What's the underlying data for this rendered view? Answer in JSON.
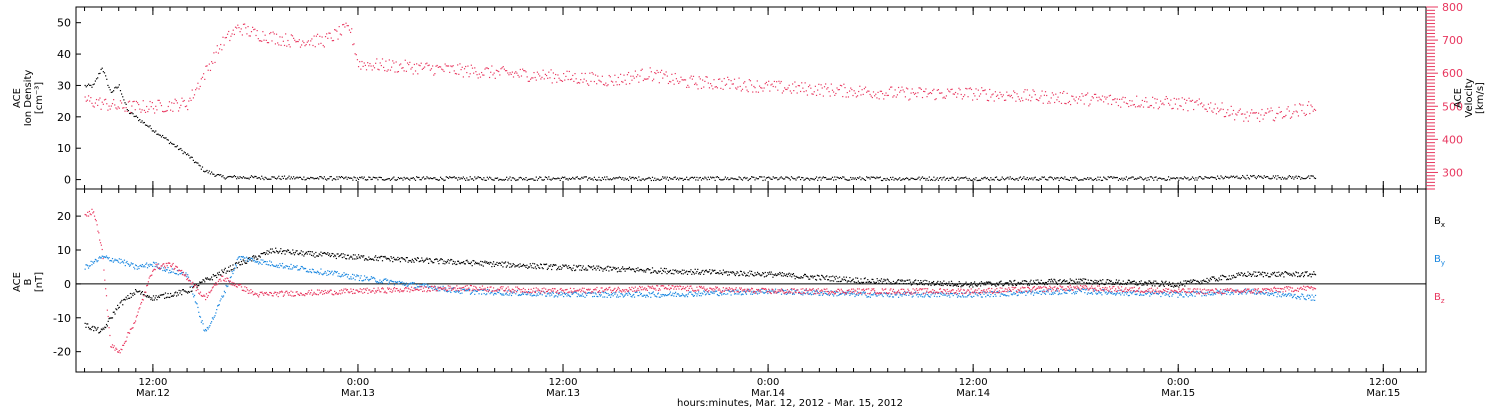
{
  "chart_data": [
    {
      "type": "scatter",
      "panel": "top",
      "ylabel_lines": [
        "ACE",
        "Ion Density",
        "[cm⁻³]"
      ],
      "y2label_lines": [
        "ACE",
        "Velocity",
        "[km/s]"
      ],
      "ylim": [
        -3,
        55
      ],
      "y_ticks": [
        0,
        10,
        20,
        30,
        40,
        50
      ],
      "y2lim": [
        250,
        800
      ],
      "y2_ticks": [
        300,
        400,
        500,
        600,
        700,
        800
      ],
      "series": [
        {
          "color": "#000000",
          "axis": "left",
          "x": [
            "2012-03-12 08:00",
            "2012-03-12 08:30",
            "2012-03-12 09:00",
            "2012-03-12 09:30",
            "2012-03-12 10:00",
            "2012-03-12 10:30",
            "2012-03-12 11:00",
            "2012-03-12 11:30",
            "2012-03-12 12:00",
            "2012-03-12 12:30",
            "2012-03-12 13:00",
            "2012-03-12 13:30",
            "2012-03-12 14:00",
            "2012-03-12 15:00",
            "2012-03-12 16:00",
            "2012-03-12 18:00",
            "2012-03-13 00:00",
            "2012-03-13 12:00",
            "2012-03-13 18:00",
            "2012-03-14 00:00",
            "2012-03-14 12:00",
            "2012-03-15 00:00",
            "2012-03-15 04:00",
            "2012-03-15 08:00"
          ],
          "y": [
            30,
            30,
            36,
            28,
            30,
            22,
            20,
            18,
            16,
            14,
            12,
            10,
            8,
            3,
            1,
            0.8,
            0.5,
            0.5,
            0.5,
            0.5,
            0.5,
            0.5,
            1,
            0.8
          ]
        },
        {
          "color": "#e8375f",
          "axis": "right",
          "x": [
            "2012-03-12 08:00",
            "2012-03-12 10:00",
            "2012-03-12 12:00",
            "2012-03-12 14:00",
            "2012-03-12 16:00",
            "2012-03-12 17:00",
            "2012-03-12 18:00",
            "2012-03-12 20:00",
            "2012-03-12 22:00",
            "2012-03-12 23:30",
            "2012-03-13 00:00",
            "2012-03-13 03:00",
            "2012-03-13 06:00",
            "2012-03-13 09:00",
            "2012-03-13 12:00",
            "2012-03-13 15:00",
            "2012-03-13 17:00",
            "2012-03-13 19:00",
            "2012-03-13 22:00",
            "2012-03-14 00:00",
            "2012-03-14 04:00",
            "2012-03-14 08:00",
            "2012-03-14 12:00",
            "2012-03-14 16:00",
            "2012-03-14 20:00",
            "2012-03-15 00:00",
            "2012-03-15 02:00",
            "2012-03-15 04:00",
            "2012-03-15 06:00",
            "2012-03-15 08:00"
          ],
          "y": [
            520,
            500,
            500,
            510,
            690,
            740,
            720,
            700,
            700,
            740,
            630,
            620,
            610,
            600,
            590,
            580,
            600,
            575,
            570,
            560,
            550,
            540,
            540,
            530,
            520,
            510,
            500,
            470,
            480,
            500
          ]
        }
      ]
    },
    {
      "type": "scatter",
      "panel": "bottom",
      "ylabel_lines": [
        "ACE",
        "B",
        "[nT]"
      ],
      "ylim": [
        -26,
        28
      ],
      "y_ticks": [
        -20,
        -10,
        0,
        10,
        20
      ],
      "legend": [
        {
          "base": "B",
          "sub": "x",
          "color": "#000000"
        },
        {
          "base": "B",
          "sub": "y",
          "color": "#1a87e0"
        },
        {
          "base": "B",
          "sub": "z",
          "color": "#e8375f"
        }
      ],
      "series": [
        {
          "color": "#000000",
          "x": [
            "2012-03-12 08:00",
            "2012-03-12 09:00",
            "2012-03-12 10:00",
            "2012-03-12 11:00",
            "2012-03-12 12:00",
            "2012-03-12 13:00",
            "2012-03-12 14:00",
            "2012-03-12 15:00",
            "2012-03-12 17:00",
            "2012-03-12 19:00",
            "2012-03-12 21:00",
            "2012-03-13 00:00",
            "2012-03-13 04:00",
            "2012-03-13 08:00",
            "2012-03-13 12:00",
            "2012-03-13 18:00",
            "2012-03-14 00:00",
            "2012-03-14 06:00",
            "2012-03-14 12:00",
            "2012-03-14 18:00",
            "2012-03-15 00:00",
            "2012-03-15 04:00",
            "2012-03-15 08:00"
          ],
          "y": [
            -12,
            -14,
            -6,
            -2,
            -4,
            -3,
            -2,
            1,
            6,
            10,
            9,
            8,
            7,
            6,
            5,
            4,
            3,
            1,
            0,
            1,
            0,
            3,
            3
          ]
        },
        {
          "color": "#1a87e0",
          "x": [
            "2012-03-12 08:00",
            "2012-03-12 09:00",
            "2012-03-12 10:00",
            "2012-03-12 11:00",
            "2012-03-12 12:00",
            "2012-03-12 13:00",
            "2012-03-12 14:00",
            "2012-03-12 15:00",
            "2012-03-12 15:30",
            "2012-03-12 17:00",
            "2012-03-12 19:00",
            "2012-03-13 00:00",
            "2012-03-13 06:00",
            "2012-03-13 12:00",
            "2012-03-13 18:00",
            "2012-03-14 00:00",
            "2012-03-14 06:00",
            "2012-03-14 12:00",
            "2012-03-14 18:00",
            "2012-03-15 00:00",
            "2012-03-15 04:00",
            "2012-03-15 08:00"
          ],
          "y": [
            5,
            8,
            7,
            5,
            6,
            4,
            3,
            -14,
            -10,
            8,
            6,
            2,
            -2,
            -3,
            -3,
            -2,
            -3,
            -3,
            -2,
            -3,
            -2,
            -4
          ]
        },
        {
          "color": "#e8375f",
          "x": [
            "2012-03-12 08:00",
            "2012-03-12 08:30",
            "2012-03-12 09:00",
            "2012-03-12 09:30",
            "2012-03-12 10:00",
            "2012-03-12 11:00",
            "2012-03-12 12:00",
            "2012-03-12 13:00",
            "2012-03-12 14:00",
            "2012-03-12 15:00",
            "2012-03-12 16:00",
            "2012-03-12 18:00",
            "2012-03-13 00:00",
            "2012-03-13 06:00",
            "2012-03-13 12:00",
            "2012-03-13 18:00",
            "2012-03-14 00:00",
            "2012-03-14 06:00",
            "2012-03-14 12:00",
            "2012-03-14 18:00",
            "2012-03-15 00:00",
            "2012-03-15 04:00",
            "2012-03-15 08:00"
          ],
          "y": [
            20,
            22,
            10,
            -18,
            -20,
            -10,
            5,
            6,
            2,
            -4,
            2,
            -3,
            -2,
            -1,
            -2,
            -1,
            -2,
            -2,
            -2,
            -1,
            -2,
            -2,
            -1
          ]
        }
      ]
    }
  ],
  "x_axis": {
    "title": "hours:minutes, Mar. 12, 2012 - Mar. 15, 2012",
    "ticks": [
      {
        "time": "12:00",
        "date": "Mar.12"
      },
      {
        "time": "0:00",
        "date": "Mar.13"
      },
      {
        "time": "12:00",
        "date": "Mar.13"
      },
      {
        "time": "0:00",
        "date": "Mar.14"
      },
      {
        "time": "12:00",
        "date": "Mar.14"
      },
      {
        "time": "0:00",
        "date": "Mar.15"
      },
      {
        "time": "12:00",
        "date": "Mar.15"
      }
    ],
    "tick_times": [
      "2012-03-12 12:00",
      "2012-03-13 00:00",
      "2012-03-13 12:00",
      "2012-03-14 00:00",
      "2012-03-14 12:00",
      "2012-03-15 00:00",
      "2012-03-15 12:00"
    ],
    "xlim": [
      "2012-03-12 07:30",
      "2012-03-15 14:30"
    ]
  }
}
